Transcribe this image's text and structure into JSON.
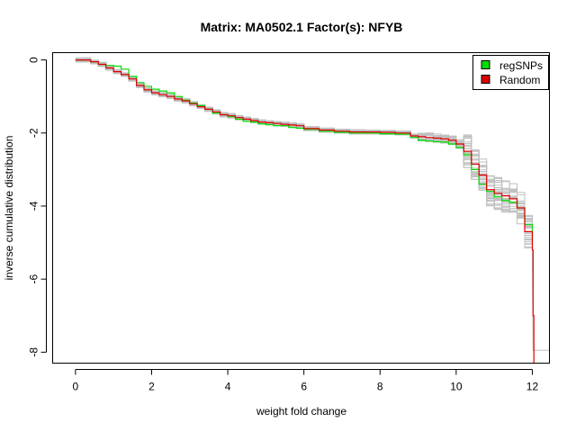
{
  "chart_data": {
    "type": "line",
    "title": "Matrix: MA0502.1 Factor(s): NFYB",
    "xlabel": "weight fold change",
    "ylabel": "inverse cumulative distribution",
    "xlim": [
      -0.6,
      12.45
    ],
    "ylim": [
      -8.3,
      0.2
    ],
    "xticks": [
      0,
      2,
      4,
      6,
      8,
      10,
      12
    ],
    "yticks": [
      0,
      -2,
      -4,
      -6,
      -8
    ],
    "grid": false,
    "legend_position": "top-right",
    "legend": [
      {
        "label": "regSNPs",
        "color": "#00dd00"
      },
      {
        "label": "Random",
        "color": "#dd0000"
      }
    ],
    "series": [
      {
        "name": "regSNPs",
        "color": "#00dd00",
        "x": [
          0,
          0.2,
          0.4,
          0.6,
          0.8,
          1.0,
          1.2,
          1.4,
          1.6,
          1.8,
          2.0,
          2.2,
          2.4,
          2.6,
          2.8,
          3.0,
          3.2,
          3.4,
          3.6,
          3.8,
          4.0,
          4.2,
          4.4,
          4.6,
          4.8,
          5.0,
          5.2,
          5.4,
          5.6,
          5.8,
          6.0,
          6.4,
          6.8,
          7.2,
          7.6,
          8.0,
          8.4,
          8.8,
          9.0,
          9.2,
          9.4,
          9.6,
          9.8,
          10.0,
          10.2,
          10.4,
          10.6,
          10.8,
          11.0,
          11.2,
          11.4,
          11.6,
          11.8,
          12.0
        ],
        "values": [
          0,
          0,
          -0.05,
          -0.12,
          -0.15,
          -0.17,
          -0.25,
          -0.45,
          -0.62,
          -0.72,
          -0.8,
          -0.85,
          -0.9,
          -1.0,
          -1.1,
          -1.18,
          -1.25,
          -1.35,
          -1.45,
          -1.5,
          -1.55,
          -1.62,
          -1.68,
          -1.7,
          -1.75,
          -1.77,
          -1.8,
          -1.8,
          -1.85,
          -1.87,
          -1.9,
          -1.95,
          -1.98,
          -2.0,
          -2.0,
          -2.02,
          -2.03,
          -2.12,
          -2.2,
          -2.22,
          -2.24,
          -2.25,
          -2.3,
          -2.4,
          -2.6,
          -3.0,
          -3.4,
          -3.6,
          -3.75,
          -3.85,
          -3.9,
          -4.05,
          -4.5,
          -5.0
        ]
      },
      {
        "name": "Random",
        "color": "#dd0000",
        "x": [
          0,
          0.2,
          0.4,
          0.6,
          0.8,
          1.0,
          1.2,
          1.4,
          1.6,
          1.8,
          2.0,
          2.2,
          2.4,
          2.6,
          2.8,
          3.0,
          3.2,
          3.4,
          3.6,
          3.8,
          4.0,
          4.2,
          4.4,
          4.6,
          4.8,
          5.0,
          5.2,
          5.4,
          5.6,
          5.8,
          6.0,
          6.4,
          6.8,
          7.2,
          7.6,
          8.0,
          8.4,
          8.8,
          9.0,
          9.2,
          9.4,
          9.6,
          9.8,
          10.0,
          10.2,
          10.4,
          10.6,
          10.8,
          11.0,
          11.2,
          11.4,
          11.6,
          11.8,
          12.0,
          12.02,
          12.04
        ],
        "values": [
          0,
          0,
          -0.05,
          -0.12,
          -0.22,
          -0.32,
          -0.4,
          -0.52,
          -0.7,
          -0.82,
          -0.9,
          -0.95,
          -1.0,
          -1.07,
          -1.12,
          -1.2,
          -1.28,
          -1.35,
          -1.42,
          -1.5,
          -1.53,
          -1.58,
          -1.62,
          -1.66,
          -1.7,
          -1.72,
          -1.74,
          -1.76,
          -1.78,
          -1.8,
          -1.88,
          -1.92,
          -1.95,
          -1.97,
          -1.97,
          -1.98,
          -2.0,
          -2.08,
          -2.1,
          -2.12,
          -2.14,
          -2.16,
          -2.2,
          -2.3,
          -2.5,
          -2.85,
          -3.15,
          -3.55,
          -3.65,
          -3.72,
          -3.8,
          -4.05,
          -4.7,
          -5.2,
          -7.0,
          -8.3
        ]
      }
    ],
    "background_series_color": "#c0c0c0",
    "background_series_count": 30
  }
}
